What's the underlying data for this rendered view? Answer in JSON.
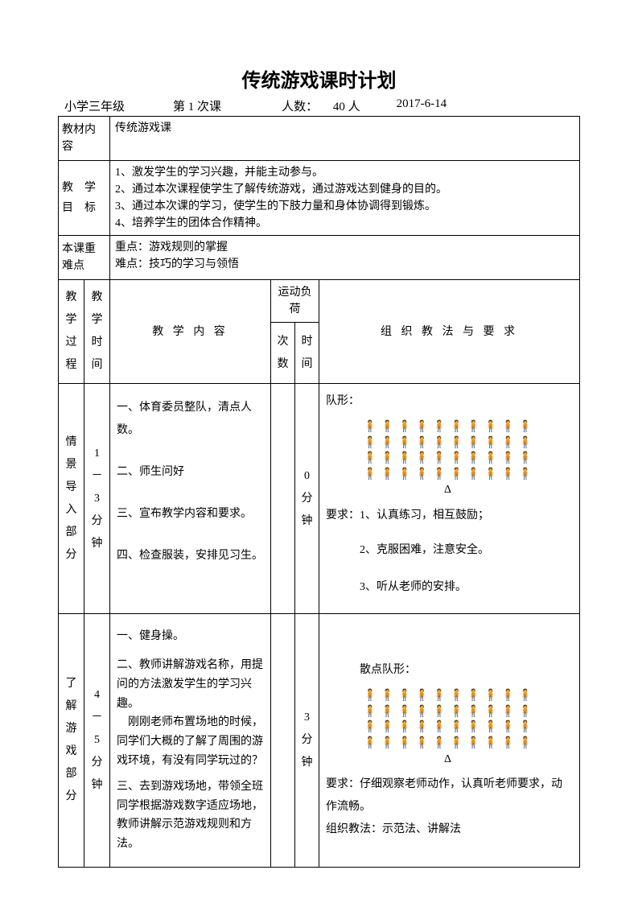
{
  "title": "传统游戏课时计划",
  "subtitle": {
    "grade": "小学三年级",
    "lesson": "第 1 次课",
    "people_label": "人数：",
    "people_count": "40 人",
    "date": "2017-6-14"
  },
  "rows": {
    "material": {
      "label": "教材内 容",
      "value": "传统游戏课"
    },
    "goals": {
      "label_1": "教",
      "label_2": "学",
      "label_3": "目",
      "label_4": "标",
      "line1": "1、激发学生的学习兴趣，并能主动参与。",
      "line2": "2、通过本次课程使学生了解传统游戏，通过游戏达到健身的目的。",
      "line3": "3、通过本次课的学习，使学生的下肢力量和身体协调得到锻炼。",
      "line4": "4、培养学生的团体合作精神。"
    },
    "difficulty": {
      "label": "本课重难点",
      "line1": "重点：游戏规则的掌握",
      "line2": "难点：技巧的学习与领悟"
    }
  },
  "headers": {
    "process": "教学过程",
    "time": "教学时间",
    "content": "教 学 内 容",
    "load": "运动负荷",
    "count": "次数",
    "duration": "时间",
    "method": "组 织 教 法 与 要 求"
  },
  "section1": {
    "name": "情景导入部分",
    "time": "1 － 3 分 钟",
    "content": {
      "l1": "一、体育委员整队，清点人数。",
      "l2": "二、师生问好",
      "l3": "三、宣布教学内容和要求。",
      "l4": "四、检查服装，安排见习生。"
    },
    "count": "",
    "duration": "0 分 钟",
    "method": {
      "formation_label": "队形：",
      "req_label": "要求：1、认真练习，相互鼓励；",
      "req2": "2、克服困难，注意安全。",
      "req3": "3、听从老师的安排。"
    }
  },
  "section2": {
    "name": "了解游戏部分",
    "time": "4 － 5 分 钟",
    "content": {
      "l1": "一、健身操。",
      "l2": "二、教师讲解游戏名称，用提问的方法激发学生的学习兴趣。",
      "l3": "刚刚老师布置场地的时候，同学们大概的了解了周围的游戏环境，有没有同学玩过的？",
      "l4": "三、去到游戏场地，带领全班同学根据游戏数字适应场地，教师讲解示范游戏规则和方法。"
    },
    "count": "",
    "duration": "3 分 钟",
    "method": {
      "formation_label": "散点队形：",
      "req1": "要求：仔细观察老师动作，认真听老师要求，动作流畅。",
      "req2": "组织教法：示范法、讲解法"
    }
  },
  "formation_data": {
    "person_char": "🧍",
    "triangle_char": "Δ",
    "rows": 4,
    "cols": 10
  },
  "colors": {
    "text": "#000000",
    "border": "#000000",
    "background": "#ffffff"
  }
}
